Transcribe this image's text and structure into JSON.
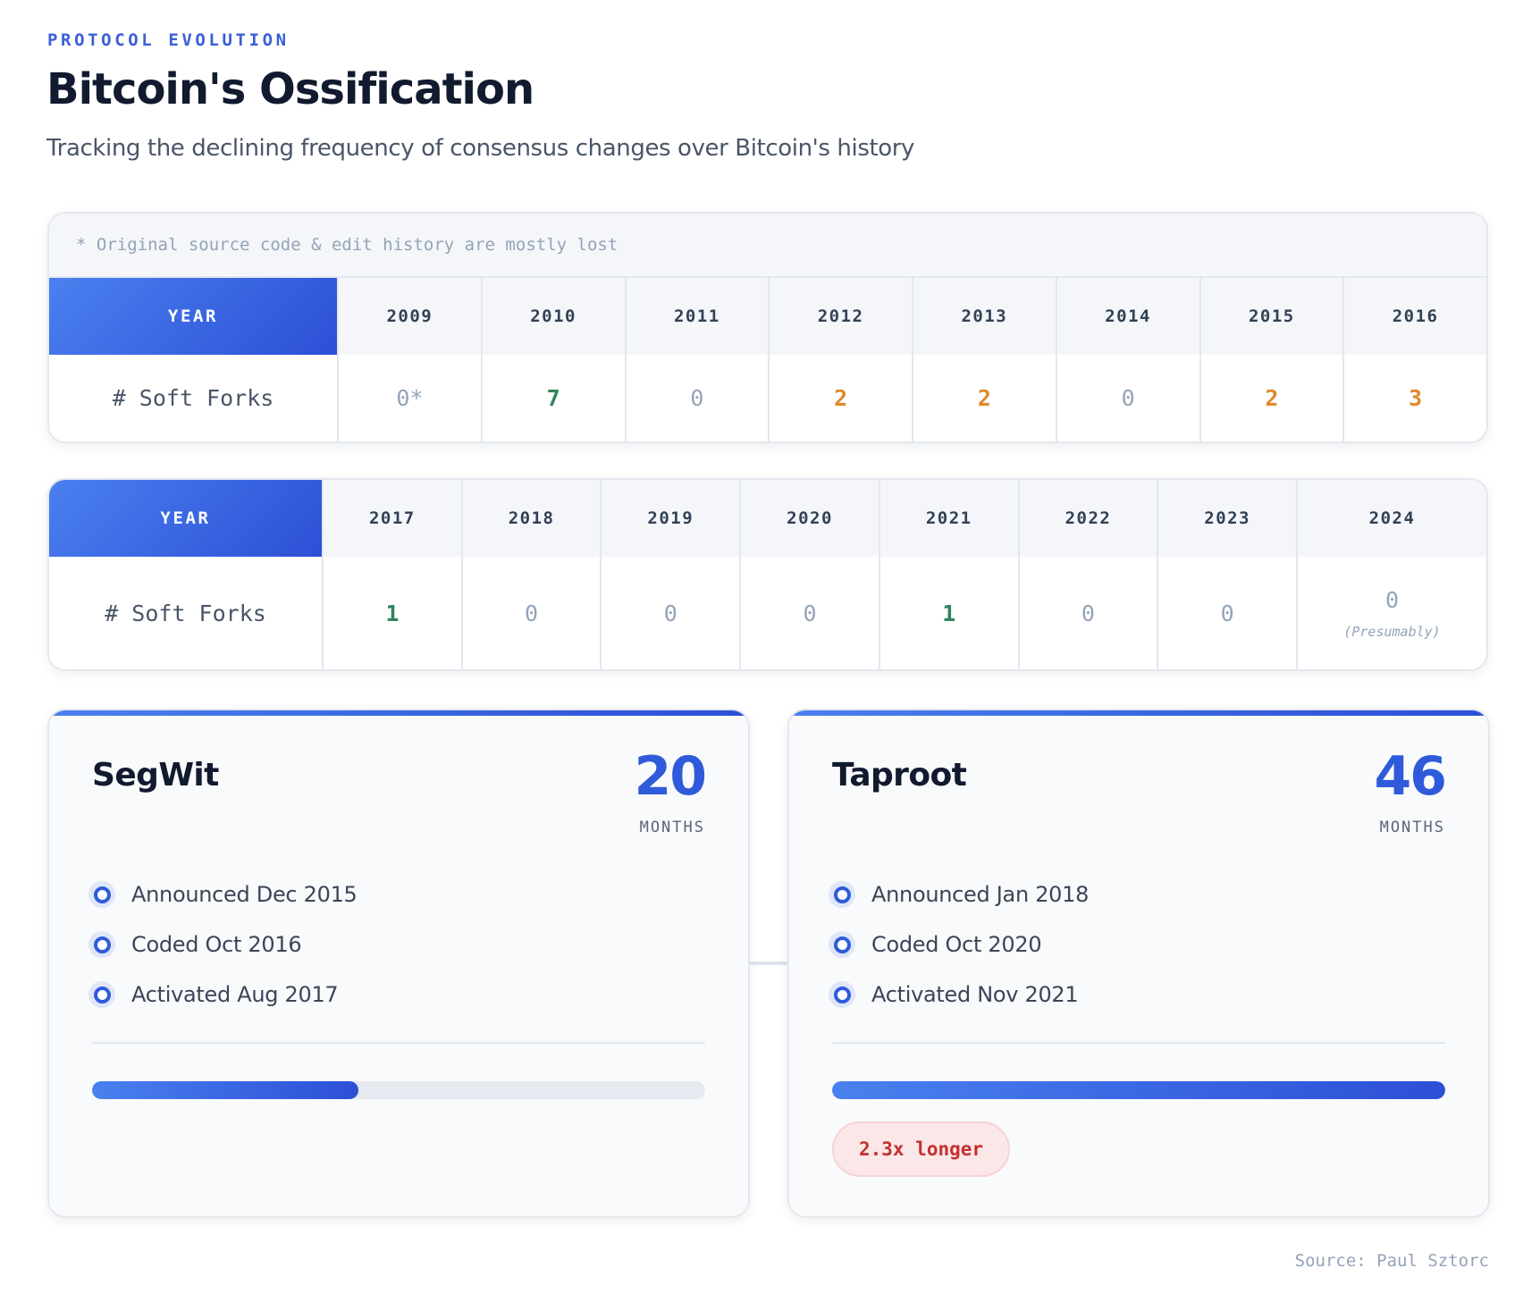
{
  "header": {
    "eyebrow": "PROTOCOL EVOLUTION",
    "title": "Bitcoin's Ossification",
    "subtitle": "Tracking the declining frequency of consensus changes over Bitcoin's history"
  },
  "chart_data": {
    "type": "table",
    "row_header": "YEAR",
    "row_label": "# Soft Forks",
    "footnote": "* Original source code & edit history are mostly lost",
    "tables": [
      {
        "years": [
          "2009",
          "2010",
          "2011",
          "2012",
          "2013",
          "2014",
          "2015",
          "2016"
        ],
        "values": [
          {
            "display": "0*",
            "value": 0,
            "tone": "gray",
            "note": ""
          },
          {
            "display": "7",
            "value": 7,
            "tone": "green",
            "note": ""
          },
          {
            "display": "0",
            "value": 0,
            "tone": "gray",
            "note": ""
          },
          {
            "display": "2",
            "value": 2,
            "tone": "orange",
            "note": ""
          },
          {
            "display": "2",
            "value": 2,
            "tone": "orange",
            "note": ""
          },
          {
            "display": "0",
            "value": 0,
            "tone": "gray",
            "note": ""
          },
          {
            "display": "2",
            "value": 2,
            "tone": "orange",
            "note": ""
          },
          {
            "display": "3",
            "value": 3,
            "tone": "orange",
            "note": ""
          }
        ]
      },
      {
        "years": [
          "2017",
          "2018",
          "2019",
          "2020",
          "2021",
          "2022",
          "2023",
          "2024"
        ],
        "values": [
          {
            "display": "1",
            "value": 1,
            "tone": "green",
            "note": ""
          },
          {
            "display": "0",
            "value": 0,
            "tone": "gray",
            "note": ""
          },
          {
            "display": "0",
            "value": 0,
            "tone": "gray",
            "note": ""
          },
          {
            "display": "0",
            "value": 0,
            "tone": "gray",
            "note": ""
          },
          {
            "display": "1",
            "value": 1,
            "tone": "green",
            "note": ""
          },
          {
            "display": "0",
            "value": 0,
            "tone": "gray",
            "note": ""
          },
          {
            "display": "0",
            "value": 0,
            "tone": "gray",
            "note": ""
          },
          {
            "display": "0",
            "value": 0,
            "tone": "gray",
            "note": "(Presumably)"
          }
        ]
      }
    ]
  },
  "comparisons": [
    {
      "name": "SegWit",
      "months": "20",
      "unit": "MONTHS",
      "milestones": [
        "Announced Dec 2015",
        "Coded Oct 2016",
        "Activated Aug 2017"
      ],
      "progress": 0.435,
      "badge": ""
    },
    {
      "name": "Taproot",
      "months": "46",
      "unit": "MONTHS",
      "milestones": [
        "Announced Jan 2018",
        "Coded Oct 2020",
        "Activated Nov 2021"
      ],
      "progress": 1.0,
      "badge": "2.3x longer"
    }
  ],
  "source": "Source: Paul Sztorc",
  "colors": {
    "accent": "#2f5bdb",
    "green": "#2f855a",
    "orange": "#e0892a",
    "gray": "#94a3b8",
    "badge_text": "#c53030",
    "badge_bg": "#fbe7e7"
  }
}
